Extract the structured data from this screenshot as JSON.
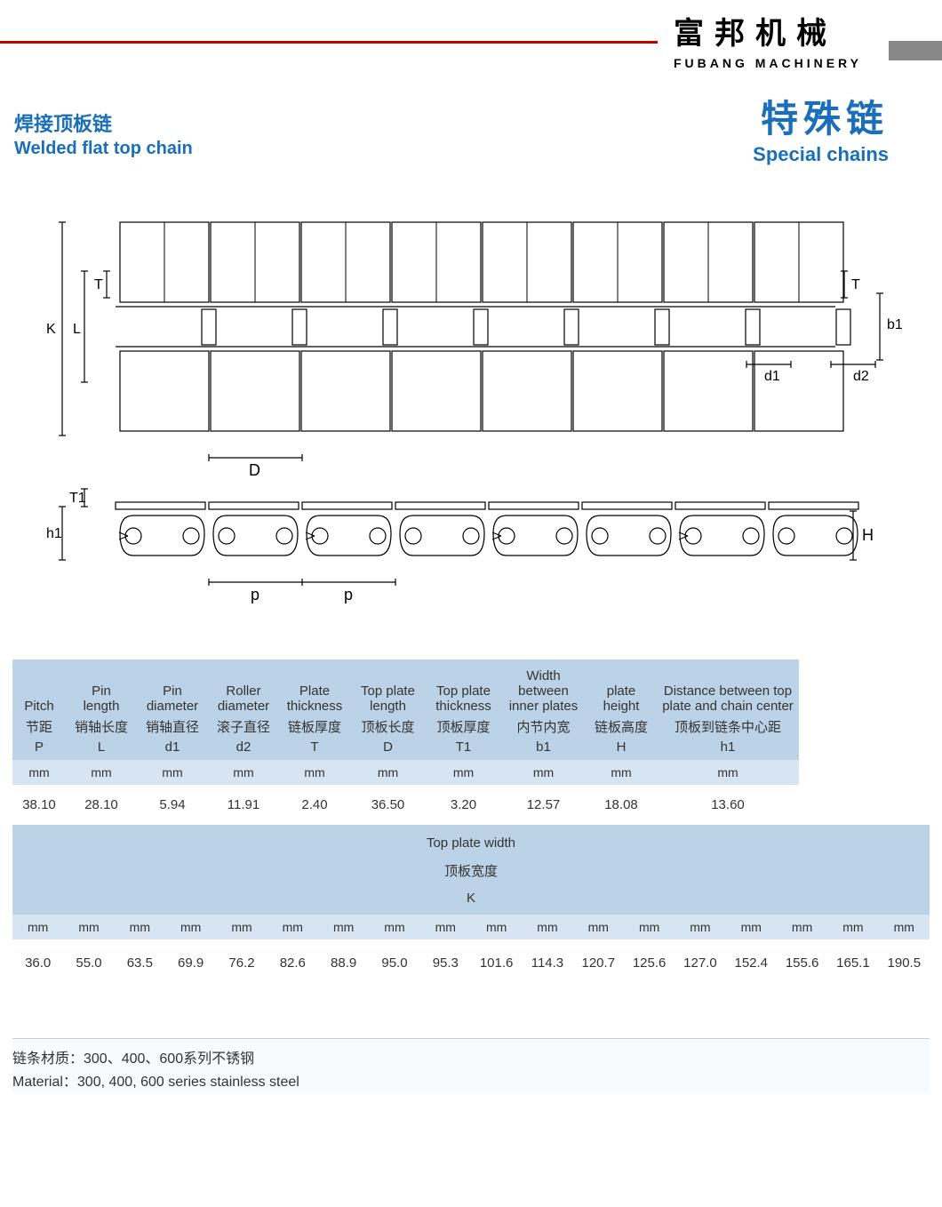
{
  "brand": {
    "cn": "富邦机械",
    "en": "FUBANG MACHINERY"
  },
  "title_left": {
    "cn": "焊接顶板链",
    "en": "Welded flat top chain"
  },
  "title_right": {
    "cn": "特殊链",
    "en": "Special chains"
  },
  "colors": {
    "accent_blue": "#1a6fb8",
    "accent_red": "#c00000",
    "header_bg": "#bcd3e7",
    "unit_bg": "#d7e5f2",
    "body_bg": "#ffffff",
    "text": "#333333",
    "gray_bar": "#888888"
  },
  "diagram": {
    "labels": [
      "K",
      "L",
      "T",
      "D",
      "p",
      "T1",
      "h1",
      "H",
      "d1",
      "d2",
      "b1"
    ],
    "stroke": "#000000",
    "stroke_width": 1.2,
    "plate_count": 8
  },
  "table1": {
    "columns": [
      {
        "en": "Pitch",
        "cn": "节距",
        "sym": "P",
        "unit": "mm",
        "val": "38.10"
      },
      {
        "en": "Pin length",
        "cn": "销轴长度",
        "sym": "L",
        "unit": "mm",
        "val": "28.10"
      },
      {
        "en": "Pin diameter",
        "cn": "销轴直径",
        "sym": "d1",
        "unit": "mm",
        "val": "5.94"
      },
      {
        "en": "Roller diameter",
        "cn": "滚子直径",
        "sym": "d2",
        "unit": "mm",
        "val": "11.91"
      },
      {
        "en": "Plate thickness",
        "cn": "链板厚度",
        "sym": "T",
        "unit": "mm",
        "val": "2.40"
      },
      {
        "en": "Top plate length",
        "cn": "顶板长度",
        "sym": "D",
        "unit": "mm",
        "val": "36.50"
      },
      {
        "en": "Top plate thickness",
        "cn": "顶板厚度",
        "sym": "T1",
        "unit": "mm",
        "val": "3.20"
      },
      {
        "en": "Width between inner plates",
        "cn": "内节内宽",
        "sym": "b1",
        "unit": "mm",
        "val": "12.57"
      },
      {
        "en": "plate height",
        "cn": "链板高度",
        "sym": "H",
        "unit": "mm",
        "val": "18.08"
      },
      {
        "en": "Distance between top plate and chain center",
        "cn": "顶板到链条中心距",
        "sym": "h1",
        "unit": "mm",
        "val": "13.60"
      }
    ]
  },
  "table2": {
    "header_en": "Top plate width",
    "header_cn": "顶板宽度",
    "header_sym": "K",
    "unit": "mm",
    "values": [
      "36.0",
      "55.0",
      "63.5",
      "69.9",
      "76.2",
      "82.6",
      "88.9",
      "95.0",
      "95.3",
      "101.6",
      "114.3",
      "120.7",
      "125.6",
      "127.0",
      "152.4",
      "155.6",
      "165.1",
      "190.5"
    ]
  },
  "material": {
    "cn": "链条材质：300、400、600系列不锈钢",
    "en": "Material：300, 400, 600 series stainless steel"
  }
}
